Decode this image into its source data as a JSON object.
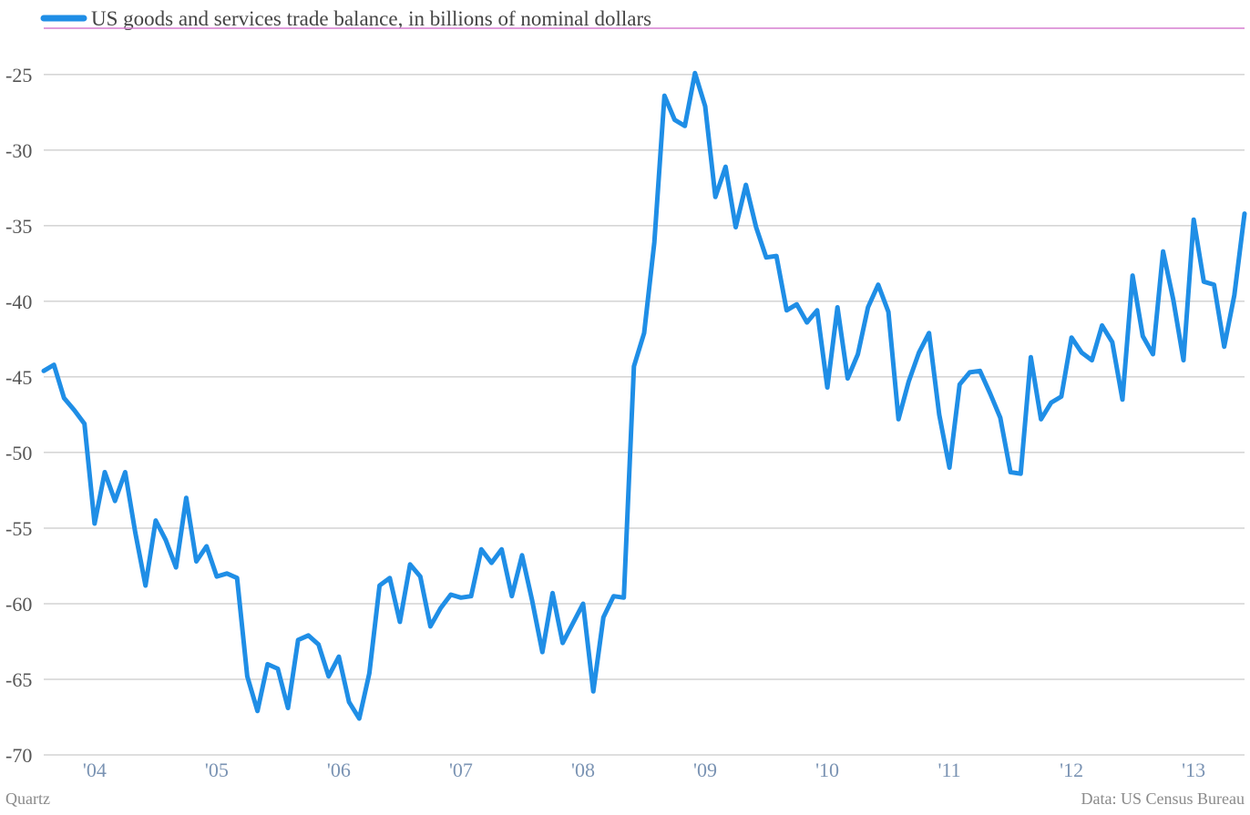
{
  "footer": {
    "source_left": "Quartz",
    "source_right": "Data: US Census Bureau"
  },
  "colors": {
    "series": "#1f8ee6",
    "top_rule": "#d67fd0",
    "grid": "#bdbdbd",
    "x_tick_text": "#7a93b3",
    "y_tick_text": "#555555"
  },
  "chart_data": {
    "type": "line",
    "title": "",
    "xlabel": "",
    "ylabel": "",
    "legend": {
      "position": "top-left",
      "entries": [
        "US goods and services trade balance, in billions of nominal dollars"
      ]
    },
    "grid": true,
    "ylim": [
      -70,
      -22
    ],
    "xlim": [
      "2003-08",
      "2013-06"
    ],
    "y_ticks": [
      -25,
      -30,
      -35,
      -40,
      -45,
      -50,
      -55,
      -60,
      -65,
      -70
    ],
    "y_tick_labels": [
      "-25",
      "-30",
      "-35",
      "-40",
      "-45",
      "-50",
      "-55",
      "-60",
      "-65",
      "-70"
    ],
    "x_tick_positions": [
      "2004-01",
      "2005-01",
      "2006-01",
      "2007-01",
      "2008-01",
      "2009-01",
      "2010-01",
      "2011-01",
      "2012-01",
      "2013-01"
    ],
    "x_tick_labels": [
      "'04",
      "'05",
      "'06",
      "'07",
      "'08",
      "'09",
      "'10",
      "'11",
      "'12",
      "'13"
    ],
    "series": [
      {
        "name": "US goods and services trade balance, in billions of nominal dollars",
        "x": [
          "2003-08",
          "2003-09",
          "2003-10",
          "2003-11",
          "2003-12",
          "2004-01",
          "2004-02",
          "2004-03",
          "2004-04",
          "2004-05",
          "2004-06",
          "2004-07",
          "2004-08",
          "2004-09",
          "2004-10",
          "2004-11",
          "2004-12",
          "2005-01",
          "2005-02",
          "2005-03",
          "2005-04",
          "2005-05",
          "2005-06",
          "2005-07",
          "2005-08",
          "2005-09",
          "2005-10",
          "2005-11",
          "2005-12",
          "2006-01",
          "2006-02",
          "2006-03",
          "2006-04",
          "2006-05",
          "2006-06",
          "2006-07",
          "2006-08",
          "2006-09",
          "2006-10",
          "2006-11",
          "2006-12",
          "2007-01",
          "2007-02",
          "2007-03",
          "2007-04",
          "2007-05",
          "2007-06",
          "2007-07",
          "2007-08",
          "2007-09",
          "2007-10",
          "2007-11",
          "2007-12",
          "2008-01",
          "2008-02",
          "2008-03",
          "2008-04",
          "2008-05",
          "2008-06",
          "2008-07",
          "2008-08",
          "2008-09",
          "2008-10",
          "2008-11",
          "2008-12",
          "2009-01",
          "2009-02",
          "2009-03",
          "2009-04",
          "2009-05",
          "2009-06",
          "2009-07",
          "2009-08",
          "2009-09",
          "2009-10",
          "2009-11",
          "2009-12",
          "2010-01",
          "2010-02",
          "2010-03",
          "2010-04",
          "2010-05",
          "2010-06",
          "2010-07",
          "2010-08",
          "2010-09",
          "2010-10",
          "2010-11",
          "2010-12",
          "2011-01",
          "2011-02",
          "2011-03",
          "2011-04",
          "2011-05",
          "2011-06",
          "2011-07",
          "2011-08",
          "2011-09",
          "2011-10",
          "2011-11",
          "2011-12",
          "2012-01",
          "2012-02",
          "2012-03",
          "2012-04",
          "2012-05",
          "2012-06",
          "2012-07",
          "2012-08",
          "2012-09",
          "2012-10",
          "2012-11",
          "2012-12",
          "2013-01",
          "2013-02",
          "2013-03",
          "2013-04",
          "2013-05",
          "2013-06"
        ],
        "values": [
          -44.6,
          -44.2,
          -46.4,
          -47.2,
          -48.1,
          -54.7,
          -51.3,
          -53.2,
          -51.3,
          -55.3,
          -58.8,
          -54.5,
          -55.8,
          -57.6,
          -53.0,
          -57.2,
          -56.2,
          -58.2,
          -58.0,
          -58.3,
          -64.8,
          -67.1,
          -64.0,
          -64.3,
          -66.9,
          -62.4,
          -62.1,
          -62.7,
          -64.8,
          -63.5,
          -66.5,
          -67.6,
          -64.6,
          -58.8,
          -58.3,
          -61.2,
          -57.4,
          -58.2,
          -61.5,
          -60.3,
          -59.4,
          -59.6,
          -59.5,
          -56.4,
          -57.3,
          -56.4,
          -59.5,
          -56.8,
          -59.8,
          -63.2,
          -59.3,
          -62.6,
          -61.3,
          -60.0,
          -65.8,
          -60.9,
          -59.5,
          -59.6,
          -44.3,
          -42.1,
          -36.1,
          -26.4,
          -28.0,
          -28.4,
          -24.9,
          -27.1,
          -33.1,
          -31.1,
          -35.1,
          -32.3,
          -35.1,
          -37.1,
          -37.0,
          -40.6,
          -40.2,
          -41.4,
          -40.6,
          -45.7,
          -40.4,
          -45.1,
          -43.5,
          -40.4,
          -38.9,
          -40.7,
          -47.8,
          -45.3,
          -43.4,
          -42.1,
          -47.5,
          -51.0,
          -45.5,
          -44.7,
          -44.6,
          -46.1,
          -47.7,
          -51.3,
          -51.4,
          -43.7,
          -47.8,
          -46.7,
          -46.3,
          -42.4,
          -43.4,
          -43.9,
          -41.6,
          -42.7,
          -46.5,
          -38.3,
          -42.3,
          -43.5,
          -36.7,
          -39.9,
          -43.9,
          -34.6,
          -38.7,
          -38.9,
          -43.0,
          -39.6,
          -34.2
        ]
      }
    ]
  }
}
